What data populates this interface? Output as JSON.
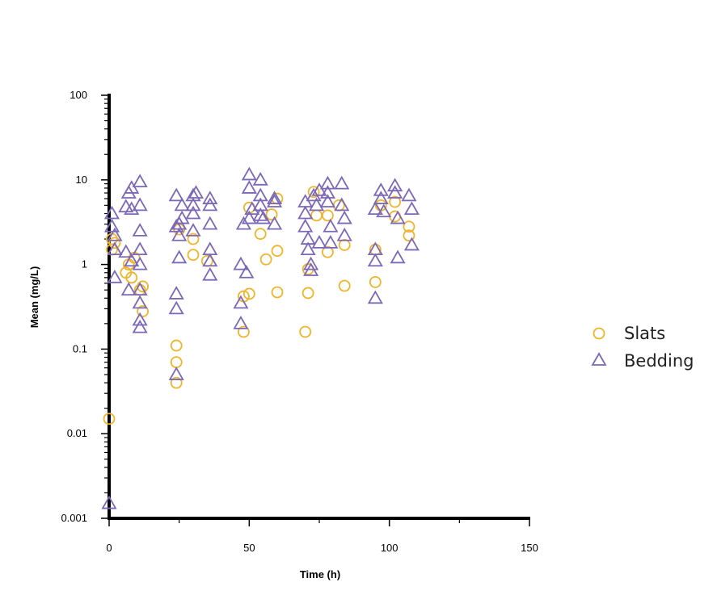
{
  "chart_data": {
    "type": "scatter",
    "xlabel": "Time (h)",
    "ylabel": "Mean (mg/L)",
    "xlim": [
      0,
      150
    ],
    "ylim": [
      0.001,
      100
    ],
    "yscale": "log",
    "x_ticks": [
      0,
      50,
      100,
      150
    ],
    "x_tick_labels": [
      "0",
      "50",
      "100",
      "150"
    ],
    "y_ticks": [
      0.001,
      0.01,
      0.1,
      1,
      10,
      100
    ],
    "y_tick_labels": [
      "0.001",
      "0.01",
      "0.1",
      "1",
      "10",
      "100"
    ],
    "grid": false,
    "legend_position": "right",
    "series": [
      {
        "name": "Slats",
        "marker": "circle",
        "color": "#F0B429",
        "points": [
          [
            0,
            0.015
          ],
          [
            1,
            1.5
          ],
          [
            1,
            2.0
          ],
          [
            2,
            1.8
          ],
          [
            6,
            0.8
          ],
          [
            7,
            1.0
          ],
          [
            8,
            0.7
          ],
          [
            9,
            1.2
          ],
          [
            11,
            0.5
          ],
          [
            12,
            0.28
          ],
          [
            12,
            0.55
          ],
          [
            24,
            0.11
          ],
          [
            24,
            0.07
          ],
          [
            24,
            0.04
          ],
          [
            25,
            2.6
          ],
          [
            30,
            1.3
          ],
          [
            30,
            2.0
          ],
          [
            35,
            1.1
          ],
          [
            48,
            0.16
          ],
          [
            48,
            0.42
          ],
          [
            50,
            0.45
          ],
          [
            50,
            4.7
          ],
          [
            54,
            2.3
          ],
          [
            56,
            1.15
          ],
          [
            58,
            3.9
          ],
          [
            60,
            1.45
          ],
          [
            60,
            0.47
          ],
          [
            60,
            6.0
          ],
          [
            70,
            0.16
          ],
          [
            71,
            0.46
          ],
          [
            71,
            0.88
          ],
          [
            73,
            7.2
          ],
          [
            74,
            3.8
          ],
          [
            78,
            1.4
          ],
          [
            78,
            3.8
          ],
          [
            82,
            5.0
          ],
          [
            84,
            0.56
          ],
          [
            84,
            1.7
          ],
          [
            95,
            1.5
          ],
          [
            95,
            0.62
          ],
          [
            97,
            5.0
          ],
          [
            102,
            5.5
          ],
          [
            102,
            3.7
          ],
          [
            107,
            2.8
          ],
          [
            107,
            2.2
          ]
        ]
      },
      {
        "name": "Bedding",
        "marker": "triangle",
        "color": "#7B68B8",
        "points": [
          [
            0,
            0.0015
          ],
          [
            1,
            4.0
          ],
          [
            1,
            2.8
          ],
          [
            2,
            1.5
          ],
          [
            2,
            0.7
          ],
          [
            2,
            2.2
          ],
          [
            6,
            4.8
          ],
          [
            6,
            1.4
          ],
          [
            7,
            0.5
          ],
          [
            7,
            7.0
          ],
          [
            8,
            8.0
          ],
          [
            8,
            1.1
          ],
          [
            8,
            4.5
          ],
          [
            11,
            9.5
          ],
          [
            11,
            5.0
          ],
          [
            11,
            2.5
          ],
          [
            11,
            1.5
          ],
          [
            11,
            1.0
          ],
          [
            11,
            0.5
          ],
          [
            11,
            0.35
          ],
          [
            11,
            0.22
          ],
          [
            11,
            0.18
          ],
          [
            24,
            6.5
          ],
          [
            24,
            2.8
          ],
          [
            24,
            0.45
          ],
          [
            24,
            0.3
          ],
          [
            24,
            0.05
          ],
          [
            25,
            3.0
          ],
          [
            26,
            5.0
          ],
          [
            25,
            2.2
          ],
          [
            25,
            1.2
          ],
          [
            26,
            3.5
          ],
          [
            30,
            6.5
          ],
          [
            30,
            5.0
          ],
          [
            30,
            4.0
          ],
          [
            30,
            2.5
          ],
          [
            31,
            7.0
          ],
          [
            36,
            6.0
          ],
          [
            36,
            5.0
          ],
          [
            36,
            3.0
          ],
          [
            36,
            1.5
          ],
          [
            36,
            1.1
          ],
          [
            36,
            0.75
          ],
          [
            47,
            1.0
          ],
          [
            47,
            0.35
          ],
          [
            47,
            0.2
          ],
          [
            48,
            3.0
          ],
          [
            49,
            0.8
          ],
          [
            50,
            11.5
          ],
          [
            50,
            8.0
          ],
          [
            50,
            3.5
          ],
          [
            51,
            4.5
          ],
          [
            54,
            10.0
          ],
          [
            54,
            6.5
          ],
          [
            54,
            5.0
          ],
          [
            54,
            3.8
          ],
          [
            55,
            3.5
          ],
          [
            59,
            6.0
          ],
          [
            59,
            5.5
          ],
          [
            59,
            3.0
          ],
          [
            70,
            5.5
          ],
          [
            70,
            4.0
          ],
          [
            70,
            2.8
          ],
          [
            71,
            2.0
          ],
          [
            71,
            1.5
          ],
          [
            72,
            1.0
          ],
          [
            72,
            0.85
          ],
          [
            73,
            6.5
          ],
          [
            74,
            5.0
          ],
          [
            75,
            7.5
          ],
          [
            75,
            1.8
          ],
          [
            78,
            9.0
          ],
          [
            78,
            7.0
          ],
          [
            78,
            5.5
          ],
          [
            79,
            2.8
          ],
          [
            79,
            1.8
          ],
          [
            83,
            9.0
          ],
          [
            83,
            5.0
          ],
          [
            84,
            3.5
          ],
          [
            84,
            2.2
          ],
          [
            95,
            4.5
          ],
          [
            95,
            1.5
          ],
          [
            95,
            1.1
          ],
          [
            95,
            0.4
          ],
          [
            97,
            7.5
          ],
          [
            97,
            6.0
          ],
          [
            98,
            4.2
          ],
          [
            102,
            8.5
          ],
          [
            102,
            7.0
          ],
          [
            103,
            3.5
          ],
          [
            103,
            1.2
          ],
          [
            107,
            6.5
          ],
          [
            108,
            4.5
          ],
          [
            108,
            1.7
          ]
        ]
      }
    ]
  },
  "legend": {
    "items": [
      {
        "label": "Slats",
        "marker": "circle",
        "color": "#F0B429"
      },
      {
        "label": "Bedding",
        "marker": "triangle",
        "color": "#7B68B8"
      }
    ]
  }
}
